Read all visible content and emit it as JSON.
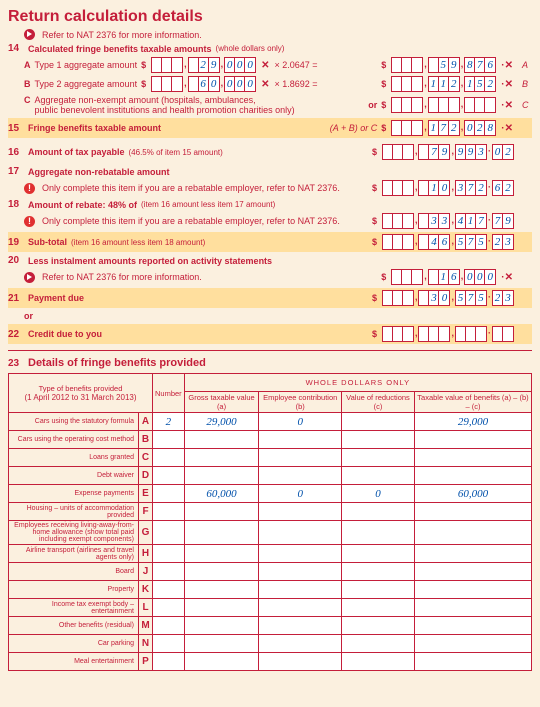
{
  "header": {
    "title": "Return calculation details",
    "refer": "Refer to NAT 2376 for more information."
  },
  "items": {
    "i14": {
      "num": "14",
      "label": "Calculated fringe benefits taxable amounts",
      "suffix": "(whole dollars only)",
      "A": {
        "label": "Type 1 aggregate amount",
        "in": "29,000",
        "mult": "× 2.0647 =",
        "out": "59,876"
      },
      "B": {
        "label": "Type 2 aggregate amount",
        "in": "60,000",
        "mult": "× 1.8692 =",
        "out": "112,152"
      },
      "C": {
        "label1": "Aggregate non-exempt amount (hospitals, ambulances,",
        "label2": "public benevolent institutions and health promotion charities only)",
        "or": "or"
      }
    },
    "i15": {
      "num": "15",
      "label": "Fringe benefits taxable amount",
      "eq": "(A + B) or C",
      "out": "172,028"
    },
    "i16": {
      "num": "16",
      "label": "Amount of tax payable",
      "suffix": "(46.5% of item 15 amount)",
      "out_int": "79,993",
      "out_dec": "02"
    },
    "i17": {
      "num": "17",
      "label": "Aggregate non-rebatable amount",
      "note": "Only complete this item if you are a rebatable employer, refer to NAT 2376.",
      "out_int": "10,372",
      "out_dec": "62"
    },
    "i18": {
      "num": "18",
      "label": "Amount of rebate: 48% of",
      "suffix": "(item 16 amount less item 17 amount)",
      "note": "Only complete this item if you are a rebatable employer, refer to NAT 2376.",
      "out_int": "33,417",
      "out_dec": "79"
    },
    "i19": {
      "num": "19",
      "label": "Sub-total",
      "suffix": "(item 16 amount less item 18 amount)",
      "out_int": "46,575",
      "out_dec": "23"
    },
    "i20": {
      "num": "20",
      "label": "Less instalment amounts reported on activity statements",
      "refer": "Refer to NAT 2376 for more information.",
      "out_int": "16,000"
    },
    "i21": {
      "num": "21",
      "label": "Payment due",
      "out_int": "30,575",
      "out_dec": "23",
      "or": "or"
    },
    "i22": {
      "num": "22",
      "label": "Credit due to you"
    }
  },
  "section23": {
    "num": "23",
    "title": "Details of fringe benefits provided",
    "type_hdr1": "Type of benefits provided",
    "type_hdr2": "(1 April 2012 to 31 March 2013)",
    "number_hdr": "Number",
    "whole_hdr": "WHOLE DOLLARS ONLY",
    "cols": {
      "a": "Gross taxable value\n(a)",
      "b": "Employee contribution\n(b)",
      "c": "Value of reductions\n(c)",
      "d": "Taxable value of benefits\n(a) – (b) – (c)"
    },
    "rows": [
      {
        "label": "Cars using the statutory formula",
        "letter": "A",
        "number": "2",
        "a": "29,000",
        "b": "0",
        "c": "",
        "d": "29,000"
      },
      {
        "label": "Cars using the operating cost method",
        "letter": "B"
      },
      {
        "label": "Loans granted",
        "letter": "C"
      },
      {
        "label": "Debt waiver",
        "letter": "D"
      },
      {
        "label": "Expense payments",
        "letter": "E",
        "number": "",
        "a": "60,000",
        "b": "0",
        "c": "0",
        "d": "60,000"
      },
      {
        "label": "Housing – units of accommodation provided",
        "letter": "F"
      },
      {
        "label": "Employees receiving living-away-from-home allowance\n(show total paid including exempt components)",
        "letter": "G"
      },
      {
        "label": "Airline transport (airlines and travel agents only)",
        "letter": "H"
      },
      {
        "label": "Board",
        "letter": "J"
      },
      {
        "label": "Property",
        "letter": "K"
      },
      {
        "label": "Income tax exempt body – entertainment",
        "letter": "L"
      },
      {
        "label": "Other benefits (residual)",
        "letter": "M"
      },
      {
        "label": "Car parking",
        "letter": "N"
      },
      {
        "label": "Meal entertainment",
        "letter": "P"
      }
    ]
  }
}
